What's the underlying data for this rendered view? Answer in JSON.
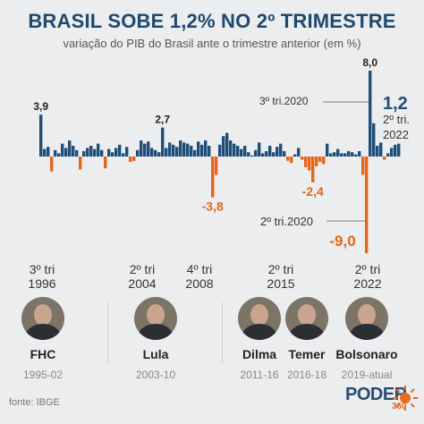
{
  "title": "BRASIL SOBE 1,2% NO 2º TRIMESTRE",
  "subtitle": "variação do PIB do Brasil ante o trimestre anterior (em %)",
  "source": "fonte: IBGE",
  "logo": {
    "name": "PODER",
    "sub": "360"
  },
  "colors": {
    "positive": "#1f4e79",
    "negative": "#e8641b"
  },
  "chart_data": {
    "type": "bar",
    "series_name": "variação do PIB (%)",
    "start": "3º tri 1996",
    "values": [
      3.9,
      0.7,
      0.9,
      -1.4,
      0.6,
      0.3,
      1.2,
      0.8,
      1.5,
      1.0,
      0.6,
      -1.2,
      0.5,
      0.8,
      1.0,
      0.7,
      1.2,
      0.6,
      -1.1,
      0.7,
      0.4,
      0.8,
      1.1,
      0.3,
      0.9,
      -0.5,
      -0.4,
      0.6,
      1.5,
      1.2,
      1.4,
      0.8,
      0.6,
      0.4,
      2.7,
      0.8,
      1.3,
      1.1,
      0.9,
      1.5,
      1.3,
      1.2,
      1.0,
      0.6,
      1.4,
      1.1,
      1.5,
      1.0,
      -3.8,
      -1.7,
      1.1,
      1.9,
      2.2,
      1.5,
      1.2,
      1.0,
      0.7,
      1.0,
      0.4,
      0.1,
      0.6,
      1.3,
      0.3,
      0.5,
      1.0,
      0.4,
      0.9,
      1.2,
      0.5,
      -0.4,
      -0.6,
      0.2,
      0.8,
      -0.3,
      -1.0,
      -1.3,
      -2.4,
      -0.9,
      -0.5,
      -0.7,
      1.2,
      0.3,
      0.4,
      0.7,
      0.3,
      0.3,
      0.5,
      0.4,
      0.2,
      0.5,
      -1.7,
      -9.0,
      8.0,
      3.1,
      1.0,
      1.3,
      -0.3,
      0.3,
      0.8,
      1.1,
      1.2
    ],
    "annotations": [
      {
        "label": "3,9",
        "index": 0,
        "kind": "top"
      },
      {
        "label": "2,7",
        "index": 34,
        "kind": "top"
      },
      {
        "label": "-3,8",
        "index": 48,
        "kind": "bottom"
      },
      {
        "label": "-2,4",
        "index": 76,
        "kind": "bottom"
      },
      {
        "label": "8,0",
        "index": 92,
        "kind": "top"
      },
      {
        "label": "-9,0",
        "index": 91,
        "kind": "bottom"
      },
      {
        "label": "1,2",
        "index": 100,
        "kind": "latest"
      }
    ],
    "callouts": [
      {
        "text": "3º tri.2020",
        "kind": "callout-top"
      },
      {
        "text": "2º tri.2020",
        "kind": "callout-bottom"
      },
      {
        "text": "2º tri.",
        "kind": "latest-a"
      },
      {
        "text": "2022",
        "kind": "latest-b"
      }
    ]
  },
  "timeline": [
    {
      "a": "3º tri",
      "b": "1996"
    },
    {
      "a": "2º tri",
      "b": "2004"
    },
    {
      "a": "4º tri",
      "b": "2008"
    },
    {
      "a": "2º tri",
      "b": "2015"
    },
    {
      "a": "2º tri",
      "b": "2022"
    }
  ],
  "presidents": [
    {
      "name": "FHC",
      "term": "1995-02"
    },
    {
      "name": "Lula",
      "term": "2003-10"
    },
    {
      "name": "Dilma",
      "term": "2011-16"
    },
    {
      "name": "Temer",
      "term": "2016-18"
    },
    {
      "name": "Bolsonaro",
      "term": "2019-atual"
    }
  ]
}
